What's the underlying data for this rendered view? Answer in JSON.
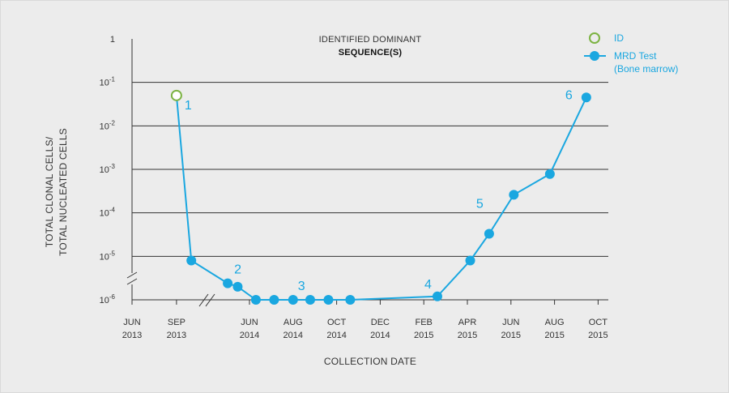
{
  "colors": {
    "background": "#ececec",
    "grid": "#333333",
    "series": "#1aa7e0",
    "id_marker": "#7cb342",
    "text": "#333333"
  },
  "chart_data": {
    "type": "line",
    "title": [
      "IDENTIFIED DOMINANT",
      "SEQUENCE(S)"
    ],
    "xlabel": "COLLECTION DATE",
    "ylabel": [
      "TOTAL CLONAL CELLS/",
      "TOTAL NUCLEATED CELLS"
    ],
    "y_scale": "log",
    "ylim": [
      1e-06,
      1
    ],
    "y_ticks": [
      {
        "value": 1,
        "base": "1",
        "exp": ""
      },
      {
        "value": 0.1,
        "base": "10",
        "exp": "-1"
      },
      {
        "value": 0.01,
        "base": "10",
        "exp": "-2"
      },
      {
        "value": 0.001,
        "base": "10",
        "exp": "-3"
      },
      {
        "value": 0.0001,
        "base": "10",
        "exp": "-4"
      },
      {
        "value": 1e-05,
        "base": "10",
        "exp": "-5"
      },
      {
        "value": 1e-06,
        "base": "10",
        "exp": "-6"
      }
    ],
    "x_axis_break": [
      "2013-09",
      "2014-06"
    ],
    "x_ticks": [
      {
        "date": "2013-06",
        "label": [
          "JUN",
          "2013"
        ]
      },
      {
        "date": "2013-09",
        "label": [
          "SEP",
          "2013"
        ]
      },
      {
        "date": "2014-06",
        "label": [
          "JUN",
          "2014"
        ]
      },
      {
        "date": "2014-08",
        "label": [
          "AUG",
          "2014"
        ]
      },
      {
        "date": "2014-10",
        "label": [
          "OCT",
          "2014"
        ]
      },
      {
        "date": "2014-12",
        "label": [
          "DEC",
          "2014"
        ]
      },
      {
        "date": "2015-02",
        "label": [
          "FEB",
          "2015"
        ]
      },
      {
        "date": "2015-04",
        "label": [
          "APR",
          "2015"
        ]
      },
      {
        "date": "2015-06",
        "label": [
          "JUN",
          "2015"
        ]
      },
      {
        "date": "2015-08",
        "label": [
          "AUG",
          "2015"
        ]
      },
      {
        "date": "2015-10",
        "label": [
          "OCT",
          "2015"
        ]
      }
    ],
    "legend": {
      "placement": "top-right",
      "id_label": "ID",
      "mrd_label": [
        "MRD Test",
        "(Bone marrow)"
      ]
    },
    "series": [
      {
        "name": "MRD Test (Bone marrow)",
        "marker": "filled-circle",
        "points": [
          {
            "date": "2013-09-01",
            "y": 0.05,
            "marker": "id-open-circle",
            "label": "1"
          },
          {
            "date": "2013-10-01",
            "y": 8e-06
          },
          {
            "date": "2014-05-01",
            "y": 2.4e-06,
            "label": "2"
          },
          {
            "date": "2014-05-15",
            "y": 2e-06
          },
          {
            "date": "2014-06-10",
            "y": 1e-06
          },
          {
            "date": "2014-07-05",
            "y": 1e-06
          },
          {
            "date": "2014-08-01",
            "y": 1e-06,
            "label": "3"
          },
          {
            "date": "2014-08-25",
            "y": 1e-06
          },
          {
            "date": "2014-09-20",
            "y": 1e-06
          },
          {
            "date": "2014-10-20",
            "y": 1e-06
          },
          {
            "date": "2015-02-20",
            "y": 1.2e-06,
            "label": "4"
          },
          {
            "date": "2015-04-05",
            "y": 8e-06
          },
          {
            "date": "2015-05-01",
            "y": 3.3e-05,
            "label": "5"
          },
          {
            "date": "2015-06-05",
            "y": 0.00026
          },
          {
            "date": "2015-07-25",
            "y": 0.00078
          },
          {
            "date": "2015-09-15",
            "y": 0.045,
            "label": "6"
          }
        ]
      }
    ]
  }
}
